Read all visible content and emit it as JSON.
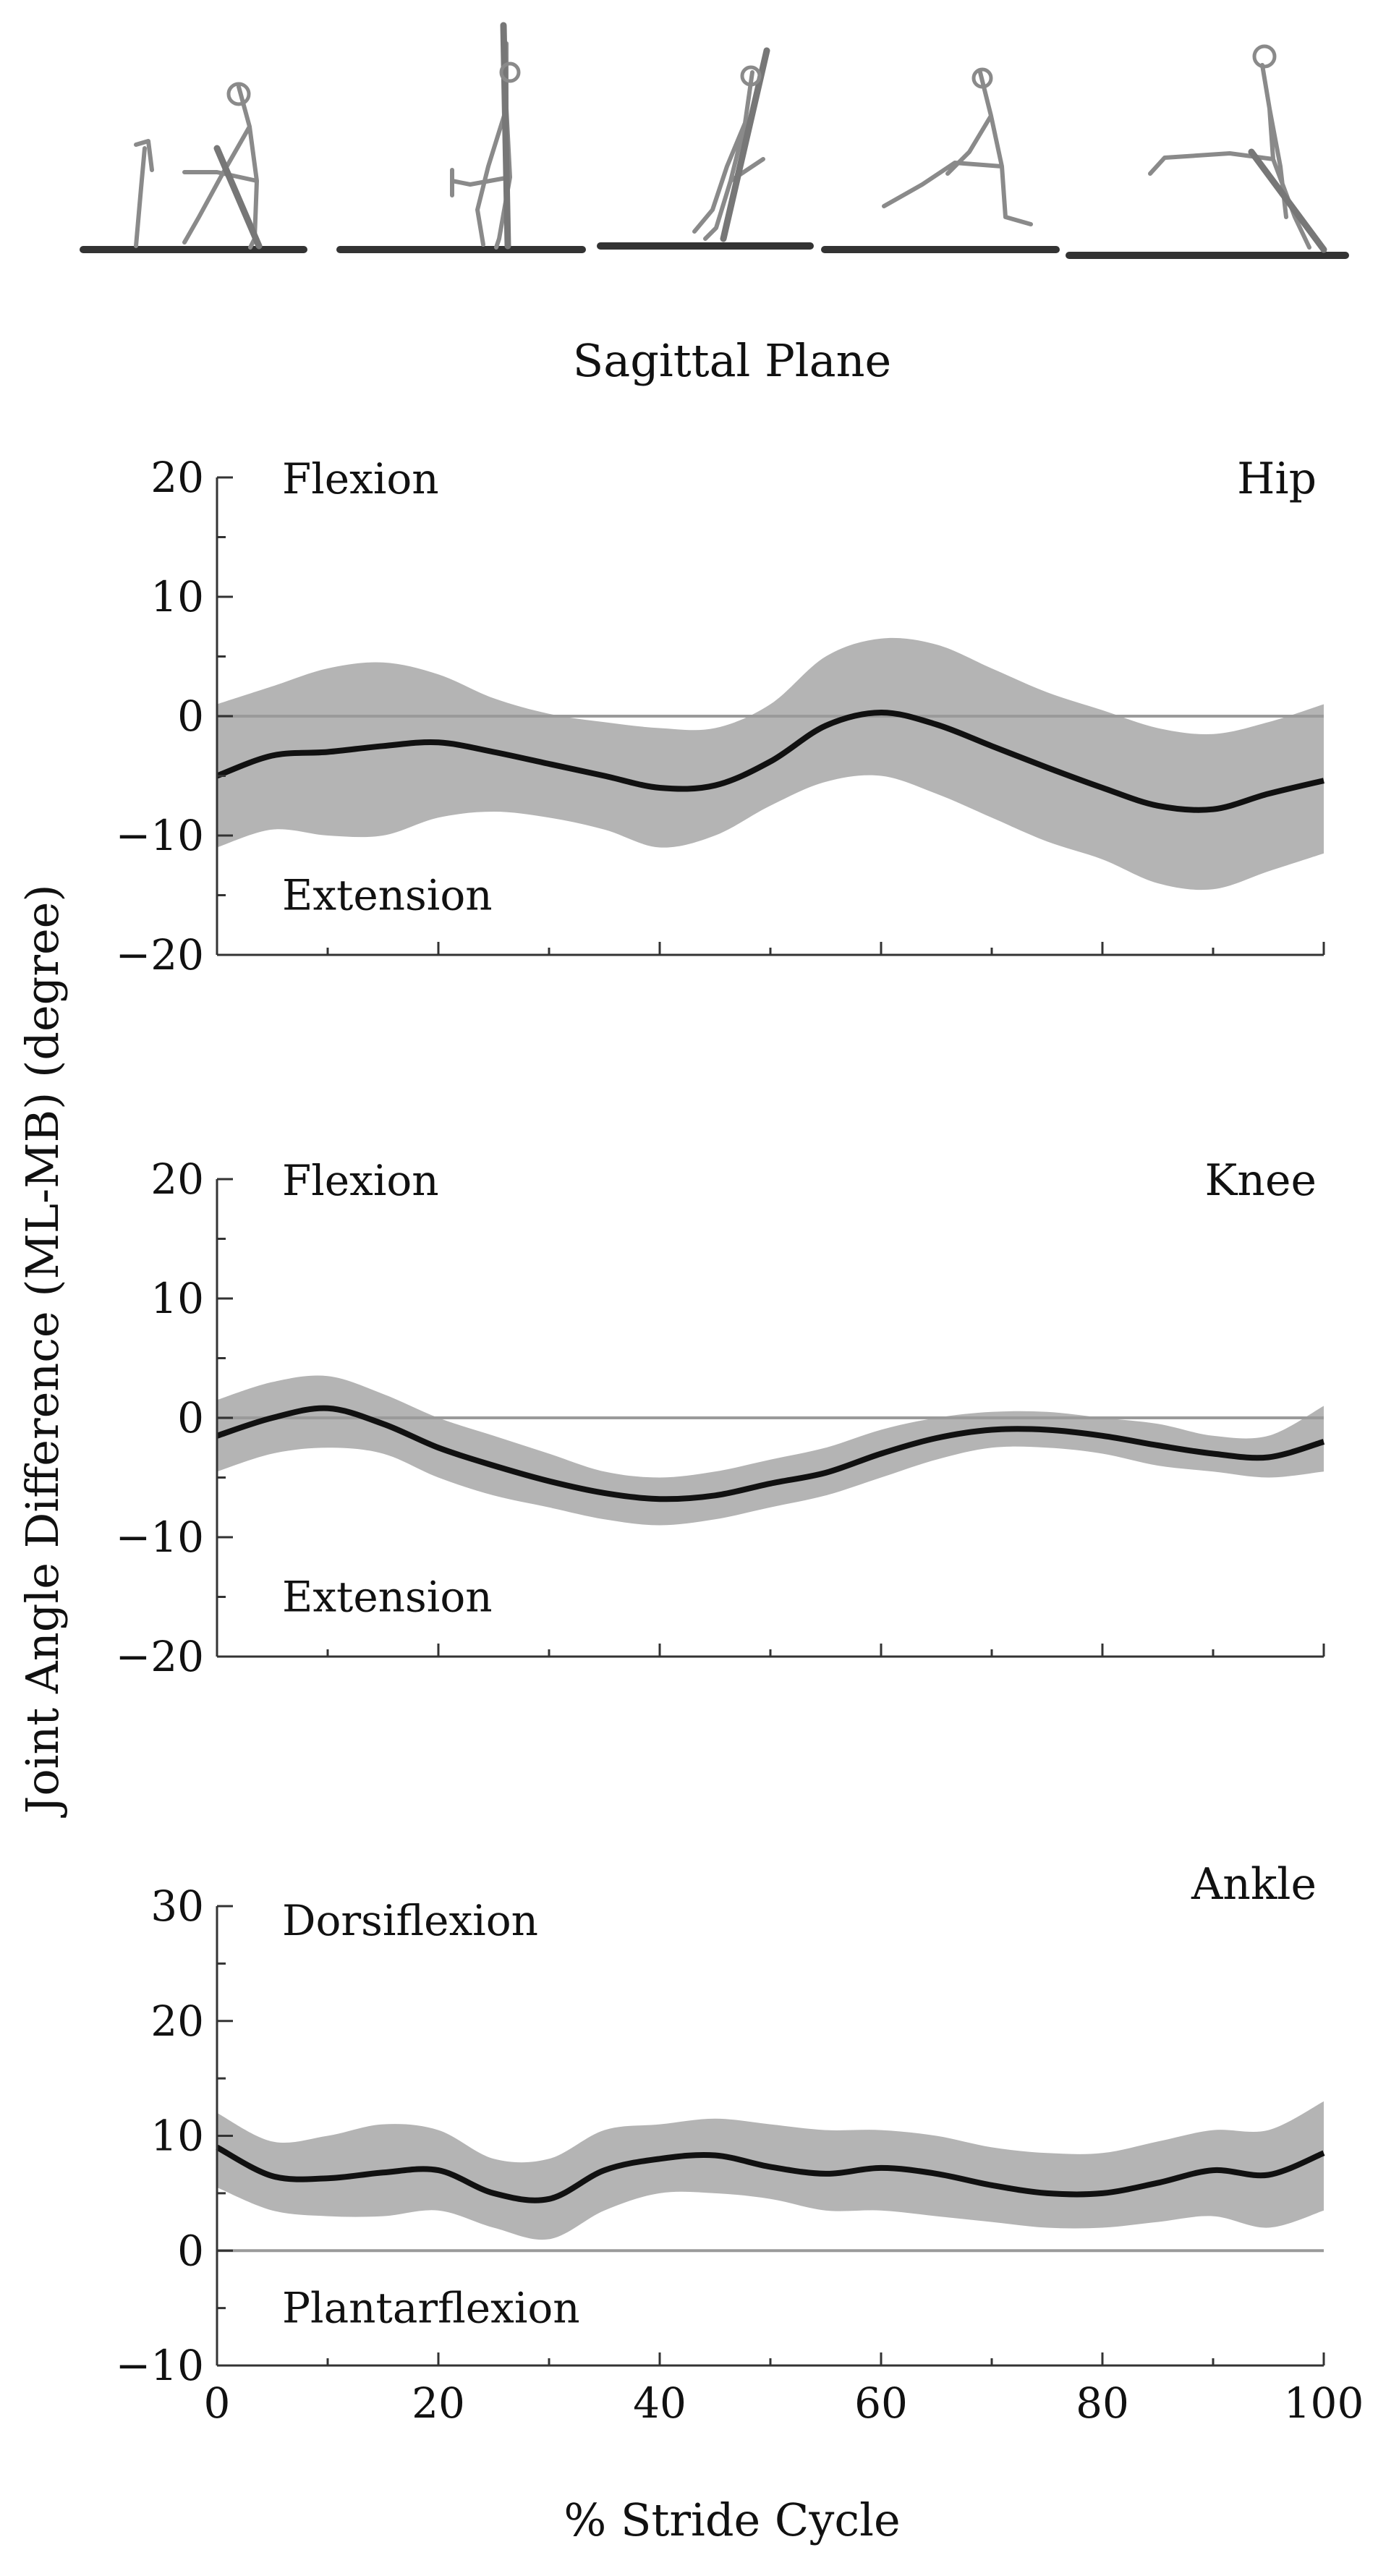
{
  "figure": {
    "plane_title": "Sagittal Plane",
    "xlabel": "% Stride Cycle",
    "ylabel": "Joint Angle Difference (ML-MB) (degree)",
    "colors": {
      "line": "#111111",
      "band": "#b4b4b4",
      "zero": "#9a9a9a",
      "axis": "#333333",
      "figure": "#8a8a8a"
    }
  },
  "chart_data": [
    {
      "type": "line",
      "title": "Hip",
      "upper_label": "Flexion",
      "lower_label": "Extension",
      "xlim": [
        0,
        100
      ],
      "ylim": [
        -20,
        20
      ],
      "yticks": [
        -20,
        -10,
        0,
        10,
        20
      ],
      "xticks": [],
      "x": [
        0,
        5,
        10,
        15,
        20,
        25,
        30,
        35,
        40,
        45,
        50,
        55,
        60,
        65,
        70,
        75,
        80,
        85,
        90,
        95,
        100
      ],
      "series": [
        {
          "name": "mean",
          "values": [
            -5.0,
            -3.3,
            -3.0,
            -2.5,
            -2.2,
            -3.0,
            -4.0,
            -5.0,
            -6.0,
            -5.8,
            -3.8,
            -0.8,
            0.3,
            -0.7,
            -2.5,
            -4.3,
            -6.0,
            -7.5,
            -7.8,
            -6.5,
            -5.4
          ]
        },
        {
          "name": "upper",
          "values": [
            1.0,
            2.5,
            4.0,
            4.5,
            3.5,
            1.5,
            0.2,
            -0.5,
            -1.0,
            -1.0,
            1.0,
            5.0,
            6.5,
            6.0,
            4.0,
            2.0,
            0.5,
            -1.0,
            -1.5,
            -0.5,
            1.0
          ]
        },
        {
          "name": "lower",
          "values": [
            -11.0,
            -9.5,
            -10.0,
            -10.0,
            -8.5,
            -8.0,
            -8.5,
            -9.5,
            -11.0,
            -10.0,
            -7.5,
            -5.5,
            -5.0,
            -6.5,
            -8.5,
            -10.5,
            -12.0,
            -14.0,
            -14.5,
            -13.0,
            -11.5
          ]
        }
      ]
    },
    {
      "type": "line",
      "title": "Knee",
      "upper_label": "Flexion",
      "lower_label": "Extension",
      "xlim": [
        0,
        100
      ],
      "ylim": [
        -20,
        20
      ],
      "yticks": [
        -20,
        -10,
        0,
        10,
        20
      ],
      "xticks": [],
      "x": [
        0,
        5,
        10,
        15,
        20,
        25,
        30,
        35,
        40,
        45,
        50,
        55,
        60,
        65,
        70,
        75,
        80,
        85,
        90,
        95,
        100
      ],
      "series": [
        {
          "name": "mean",
          "values": [
            -1.5,
            0.0,
            0.8,
            -0.5,
            -2.5,
            -4.0,
            -5.3,
            -6.3,
            -6.8,
            -6.5,
            -5.5,
            -4.6,
            -3.0,
            -1.7,
            -1.0,
            -1.0,
            -1.5,
            -2.3,
            -3.0,
            -3.3,
            -2.0
          ]
        },
        {
          "name": "upper",
          "values": [
            1.5,
            3.0,
            3.5,
            2.0,
            0.0,
            -1.5,
            -3.0,
            -4.5,
            -5.0,
            -4.5,
            -3.5,
            -2.5,
            -1.0,
            0.0,
            0.5,
            0.5,
            0.0,
            -0.5,
            -1.5,
            -1.5,
            1.0
          ]
        },
        {
          "name": "lower",
          "values": [
            -4.5,
            -3.0,
            -2.5,
            -3.0,
            -5.0,
            -6.5,
            -7.5,
            -8.5,
            -9.0,
            -8.5,
            -7.5,
            -6.5,
            -5.0,
            -3.5,
            -2.5,
            -2.5,
            -3.0,
            -4.0,
            -4.5,
            -5.0,
            -4.5
          ]
        }
      ]
    },
    {
      "type": "line",
      "title": "Ankle",
      "upper_label": "Dorsiflexion",
      "lower_label": "Plantarflexion",
      "xlim": [
        0,
        100
      ],
      "ylim": [
        -10,
        30
      ],
      "yticks": [
        -10,
        0,
        10,
        20,
        30
      ],
      "xticks": [
        0,
        20,
        40,
        60,
        80,
        100
      ],
      "x": [
        0,
        5,
        10,
        15,
        20,
        25,
        30,
        35,
        40,
        45,
        50,
        55,
        60,
        65,
        70,
        75,
        80,
        85,
        90,
        95,
        100
      ],
      "series": [
        {
          "name": "mean",
          "values": [
            9.0,
            6.5,
            6.3,
            6.8,
            7.0,
            5.0,
            4.5,
            7.0,
            8.0,
            8.3,
            7.3,
            6.7,
            7.2,
            6.7,
            5.7,
            5.0,
            5.0,
            5.9,
            7.0,
            6.6,
            8.5
          ]
        },
        {
          "name": "upper",
          "values": [
            12.0,
            9.5,
            10.0,
            11.0,
            10.5,
            8.0,
            8.0,
            10.5,
            11.0,
            11.5,
            11.0,
            10.5,
            10.5,
            10.0,
            9.0,
            8.5,
            8.5,
            9.5,
            10.5,
            10.5,
            13.0
          ]
        },
        {
          "name": "lower",
          "values": [
            5.5,
            3.5,
            3.0,
            3.0,
            3.5,
            2.0,
            1.0,
            3.5,
            5.0,
            5.0,
            4.5,
            3.5,
            3.5,
            3.0,
            2.5,
            2.0,
            2.0,
            2.5,
            3.0,
            2.0,
            3.5
          ]
        }
      ]
    }
  ]
}
